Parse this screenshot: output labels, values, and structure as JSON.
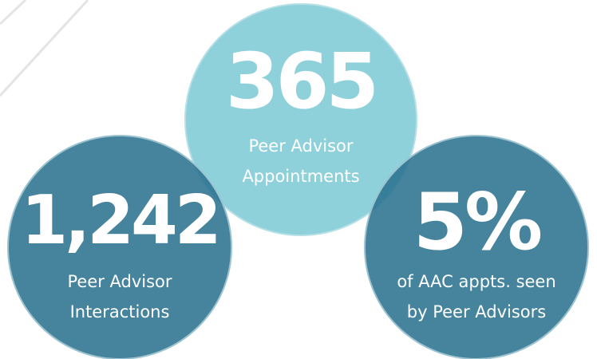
{
  "stats": [
    {
      "figure": "365",
      "lines": [
        "Peer Advisor",
        "Appointments"
      ]
    },
    {
      "figure": "1,242",
      "lines": [
        "Peer Advisor",
        "Interactions"
      ]
    },
    {
      "figure": "5%",
      "lines": [
        "of AAC appts. seen",
        "by Peer Advisors"
      ]
    }
  ]
}
